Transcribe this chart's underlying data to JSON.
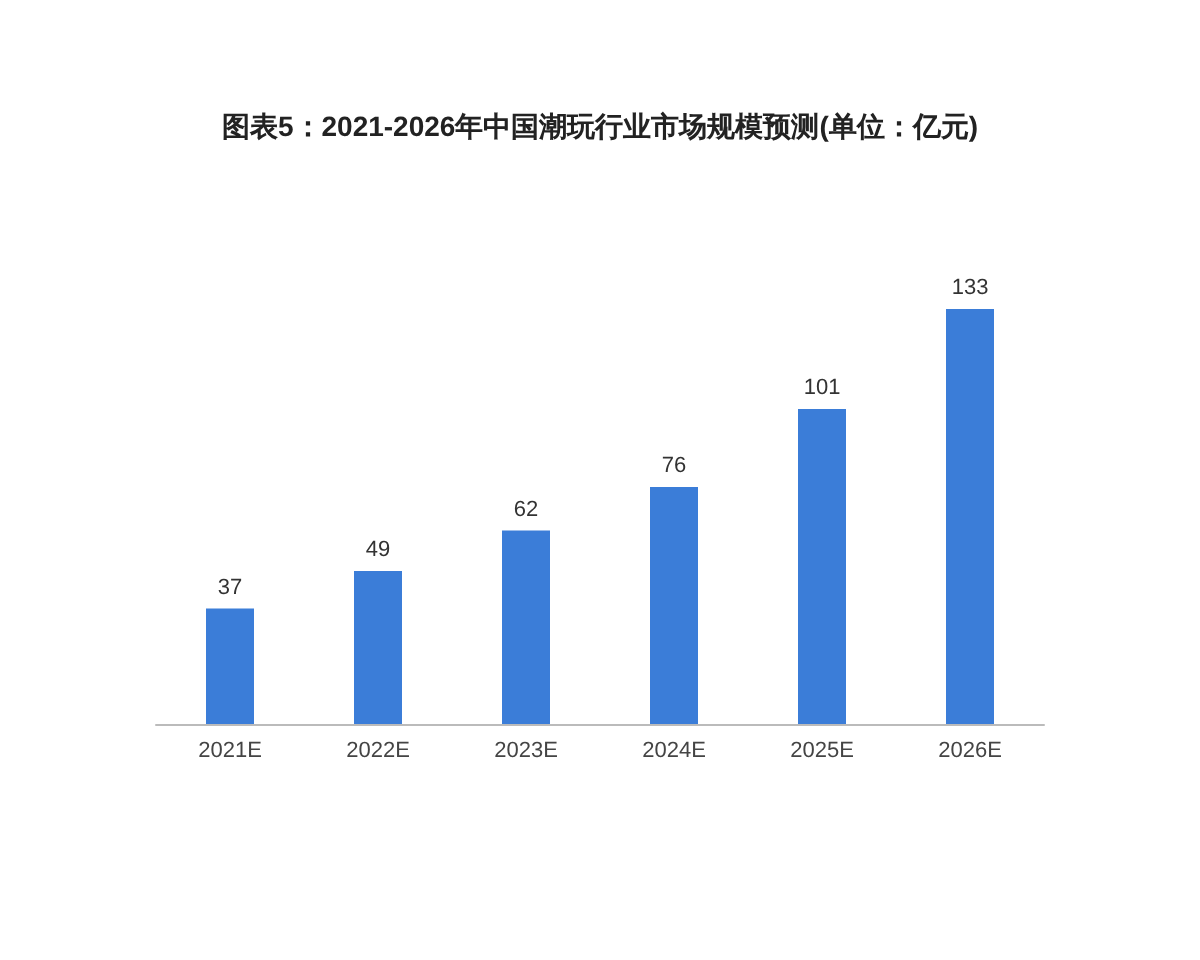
{
  "chart_data": {
    "type": "bar",
    "title": "图表5：2021-2026年中国潮玩行业市场规模预测(单位：亿元)",
    "categories": [
      "2021E",
      "2022E",
      "2023E",
      "2024E",
      "2025E",
      "2026E"
    ],
    "values": [
      37,
      49,
      62,
      76,
      101,
      133
    ],
    "color": "#3b7dd8",
    "data_labels": true,
    "grid": false
  }
}
